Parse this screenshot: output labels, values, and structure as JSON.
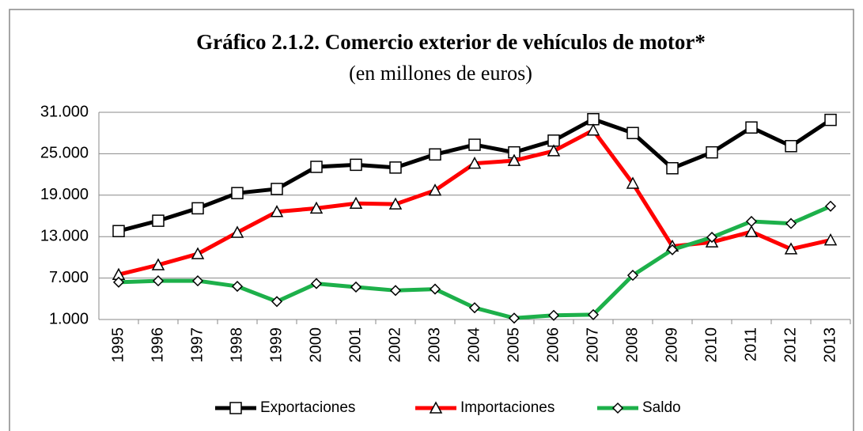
{
  "chart_data": {
    "type": "line",
    "title": "Gráfico 2.1.2. Comercio exterior de vehículos de motor*",
    "subtitle": "(en millones de euros)",
    "categories": [
      "1995",
      "1996",
      "1997",
      "1998",
      "1999",
      "2000",
      "2001",
      "2002",
      "2003",
      "2004",
      "2005",
      "2006",
      "2007",
      "2008",
      "2009",
      "2010",
      "2011",
      "2012",
      "2013"
    ],
    "series": [
      {
        "name": "Exportaciones",
        "color": "#000000",
        "marker": "square",
        "values": [
          13800,
          15300,
          17100,
          19300,
          19900,
          23100,
          23400,
          23000,
          24900,
          26300,
          25200,
          26900,
          30000,
          28000,
          22900,
          25200,
          28800,
          26100,
          29900
        ]
      },
      {
        "name": "Importaciones",
        "color": "#ff0000",
        "marker": "triangle",
        "values": [
          7500,
          8900,
          10500,
          13600,
          16600,
          17100,
          17800,
          17700,
          19700,
          23600,
          24000,
          25400,
          28400,
          20700,
          11600,
          12200,
          13700,
          11200,
          12500
        ]
      },
      {
        "name": "Saldo",
        "color": "#1db04a",
        "marker": "diamond",
        "values": [
          6400,
          6600,
          6600,
          5800,
          3600,
          6200,
          5700,
          5200,
          5400,
          2700,
          1200,
          1600,
          1700,
          7400,
          11100,
          12900,
          15200,
          14900,
          17400
        ]
      }
    ],
    "ylim": [
      1000,
      31000
    ],
    "yticks": [
      {
        "value": 1000,
        "label": "1.000"
      },
      {
        "value": 7000,
        "label": "7.000"
      },
      {
        "value": 13000,
        "label": "13.000"
      },
      {
        "value": 19000,
        "label": "19.000"
      },
      {
        "value": 25000,
        "label": "25.000"
      },
      {
        "value": 31000,
        "label": "31.000"
      }
    ],
    "grid": true,
    "legend": "bottom"
  }
}
